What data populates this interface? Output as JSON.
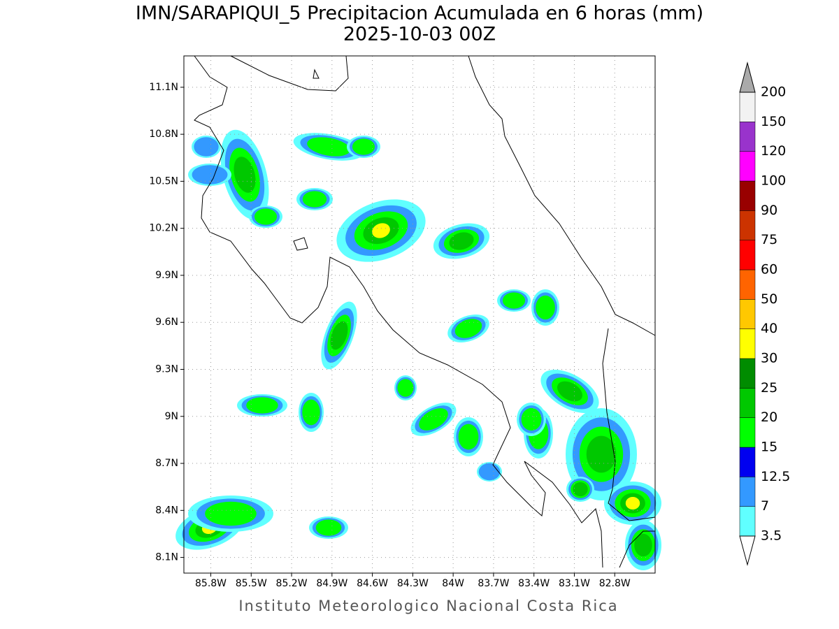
{
  "title": "IMN/SARAPIQUI_5 Precipitacion Acumulada en 6 horas (mm)",
  "subtitle": "2025-10-03 00Z",
  "footer": "Instituto Meteorologico Nacional Costa Rica",
  "map": {
    "xlim": [
      -86,
      -82.5
    ],
    "ylim": [
      8,
      11.3
    ],
    "xticks": [
      {
        "value": -85.8,
        "label": "85.8W"
      },
      {
        "value": -85.5,
        "label": "85.5W"
      },
      {
        "value": -85.2,
        "label": "85.2W"
      },
      {
        "value": -84.9,
        "label": "84.9W"
      },
      {
        "value": -84.6,
        "label": "84.6W"
      },
      {
        "value": -84.3,
        "label": "84.3W"
      },
      {
        "value": -84,
        "label": "84W"
      },
      {
        "value": -83.7,
        "label": "83.7W"
      },
      {
        "value": -83.4,
        "label": "83.4W"
      },
      {
        "value": -83.1,
        "label": "83.1W"
      },
      {
        "value": -82.8,
        "label": "82.8W"
      }
    ],
    "yticks": [
      {
        "value": 8.1,
        "label": "8.1N"
      },
      {
        "value": 8.4,
        "label": "8.4N"
      },
      {
        "value": 8.7,
        "label": "8.7N"
      },
      {
        "value": 9,
        "label": "9N"
      },
      {
        "value": 9.3,
        "label": "9.3N"
      },
      {
        "value": 9.6,
        "label": "9.6N"
      },
      {
        "value": 9.9,
        "label": "9.9N"
      },
      {
        "value": 10.2,
        "label": "10.2N"
      },
      {
        "value": 10.5,
        "label": "10.5N"
      },
      {
        "value": 10.8,
        "label": "10.8N"
      },
      {
        "value": 11.1,
        "label": "11.1N"
      }
    ],
    "grid": true
  },
  "colorbar": {
    "levels": [
      3.5,
      7,
      12.5,
      15,
      20,
      25,
      30,
      40,
      50,
      60,
      75,
      90,
      100,
      120,
      150,
      200
    ],
    "colors": [
      "#60ffff",
      "#3399ff",
      "#0000f0",
      "#00ff00",
      "#00c800",
      "#008c00",
      "#ffff00",
      "#ffc800",
      "#ff6400",
      "#ff0000",
      "#cc3300",
      "#990000",
      "#ff00ff",
      "#9933cc",
      "#f2f2f2"
    ],
    "under_color": "#ffffff",
    "over_color": "#aaaaaa"
  }
}
